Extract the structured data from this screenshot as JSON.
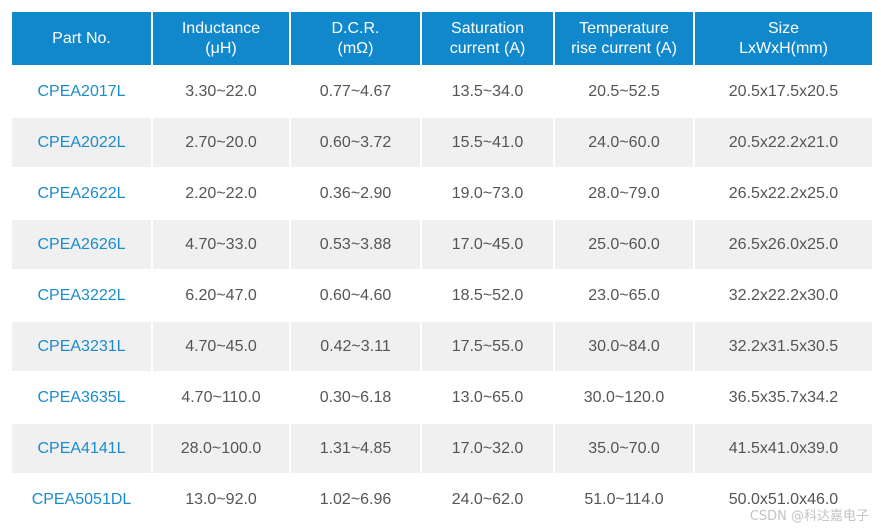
{
  "table": {
    "headers": [
      {
        "line1": "Part No.",
        "line2": ""
      },
      {
        "line1": "Inductance",
        "line2": "(μH)"
      },
      {
        "line1": "D.C.R.",
        "line2": "(mΩ)"
      },
      {
        "line1": "Saturation",
        "line2": "current (A)"
      },
      {
        "line1": "Temperature",
        "line2": "rise current (A)"
      },
      {
        "line1": "Size",
        "line2": "LxWxH(mm)"
      }
    ],
    "rows": [
      {
        "part": "CPEA2017L",
        "inductance": "3.30~22.0",
        "dcr": "0.77~4.67",
        "saturation": "13.5~34.0",
        "temp_rise": "20.5~52.5",
        "size": "20.5x17.5x20.5"
      },
      {
        "part": "CPEA2022L",
        "inductance": "2.70~20.0",
        "dcr": "0.60~3.72",
        "saturation": "15.5~41.0",
        "temp_rise": "24.0~60.0",
        "size": "20.5x22.2x21.0"
      },
      {
        "part": "CPEA2622L",
        "inductance": "2.20~22.0",
        "dcr": "0.36~2.90",
        "saturation": "19.0~73.0",
        "temp_rise": "28.0~79.0",
        "size": "26.5x22.2x25.0"
      },
      {
        "part": "CPEA2626L",
        "inductance": "4.70~33.0",
        "dcr": "0.53~3.88",
        "saturation": "17.0~45.0",
        "temp_rise": "25.0~60.0",
        "size": "26.5x26.0x25.0"
      },
      {
        "part": "CPEA3222L",
        "inductance": "6.20~47.0",
        "dcr": "0.60~4.60",
        "saturation": "18.5~52.0",
        "temp_rise": "23.0~65.0",
        "size": "32.2x22.2x30.0"
      },
      {
        "part": "CPEA3231L",
        "inductance": "4.70~45.0",
        "dcr": "0.42~3.11",
        "saturation": "17.5~55.0",
        "temp_rise": "30.0~84.0",
        "size": "32.2x31.5x30.5"
      },
      {
        "part": "CPEA3635L",
        "inductance": "4.70~110.0",
        "dcr": "0.30~6.18",
        "saturation": "13.0~65.0",
        "temp_rise": "30.0~120.0",
        "size": "36.5x35.7x34.2"
      },
      {
        "part": "CPEA4141L",
        "inductance": "28.0~100.0",
        "dcr": "1.31~4.85",
        "saturation": "17.0~32.0",
        "temp_rise": "35.0~70.0",
        "size": "41.5x41.0x39.0"
      },
      {
        "part": "CPEA5051DL",
        "inductance": "13.0~92.0",
        "dcr": "1.02~6.96",
        "saturation": "24.0~62.0",
        "temp_rise": "51.0~114.0",
        "size": "50.0x51.0x46.0"
      }
    ]
  },
  "colors": {
    "header_bg": "#1188cc",
    "header_text": "#ffffff",
    "part_text": "#1a8ccc",
    "cell_text": "#555555",
    "row_alt_bg": "#f0f0f0"
  },
  "watermark": "CSDN @科达嘉电子"
}
